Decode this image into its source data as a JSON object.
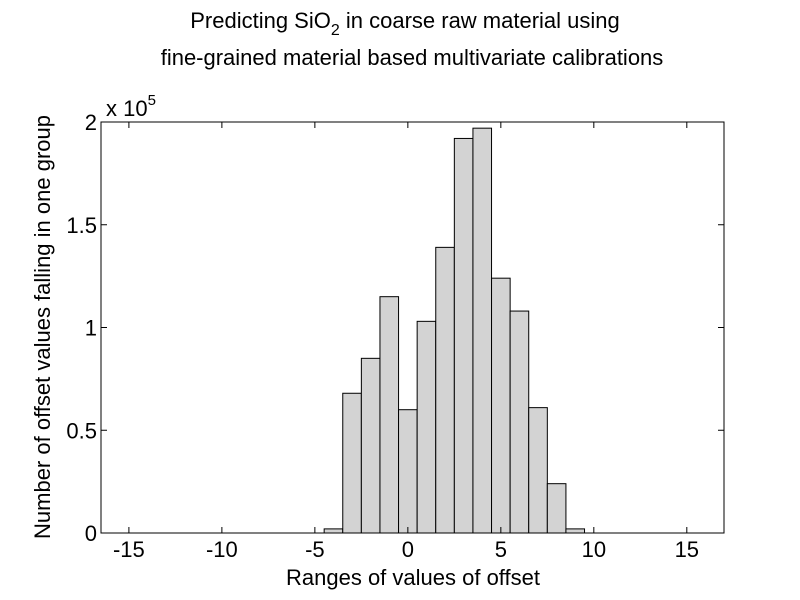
{
  "chart_data": {
    "type": "bar",
    "title_line1_pre": "Predicting SiO",
    "title_line1_sub": "2",
    "title_line1_post": " in coarse raw material using",
    "title_line2": "fine-grained material based multivariate calibrations",
    "xlabel": "Ranges of values of offset",
    "ylabel": "Number of offset values falling in one group",
    "exponent_base": "x 10",
    "exponent_power": "5",
    "multiplier": 100000,
    "xlim": [
      -16.5,
      17
    ],
    "ylim": [
      0,
      2
    ],
    "xticks": [
      -15,
      -10,
      -5,
      0,
      5,
      10,
      15
    ],
    "xtick_labels": [
      "-15",
      "-10",
      "-5",
      "0",
      "5",
      "10",
      "15"
    ],
    "yticks": [
      0,
      0.5,
      1,
      1.5,
      2
    ],
    "ytick_labels": [
      "0",
      "0.5",
      "1",
      "1.5",
      "2"
    ],
    "bin_width": 1,
    "bin_centers": [
      -4,
      -3,
      -2,
      -1,
      0,
      1,
      2,
      3,
      4,
      5,
      6,
      7,
      8,
      9
    ],
    "values": [
      0.02,
      0.68,
      0.85,
      1.15,
      0.6,
      1.03,
      1.39,
      1.92,
      1.97,
      1.24,
      1.08,
      0.61,
      0.24,
      0.02
    ],
    "bar_color": "#d3d3d3",
    "edge_color": "#000000"
  }
}
